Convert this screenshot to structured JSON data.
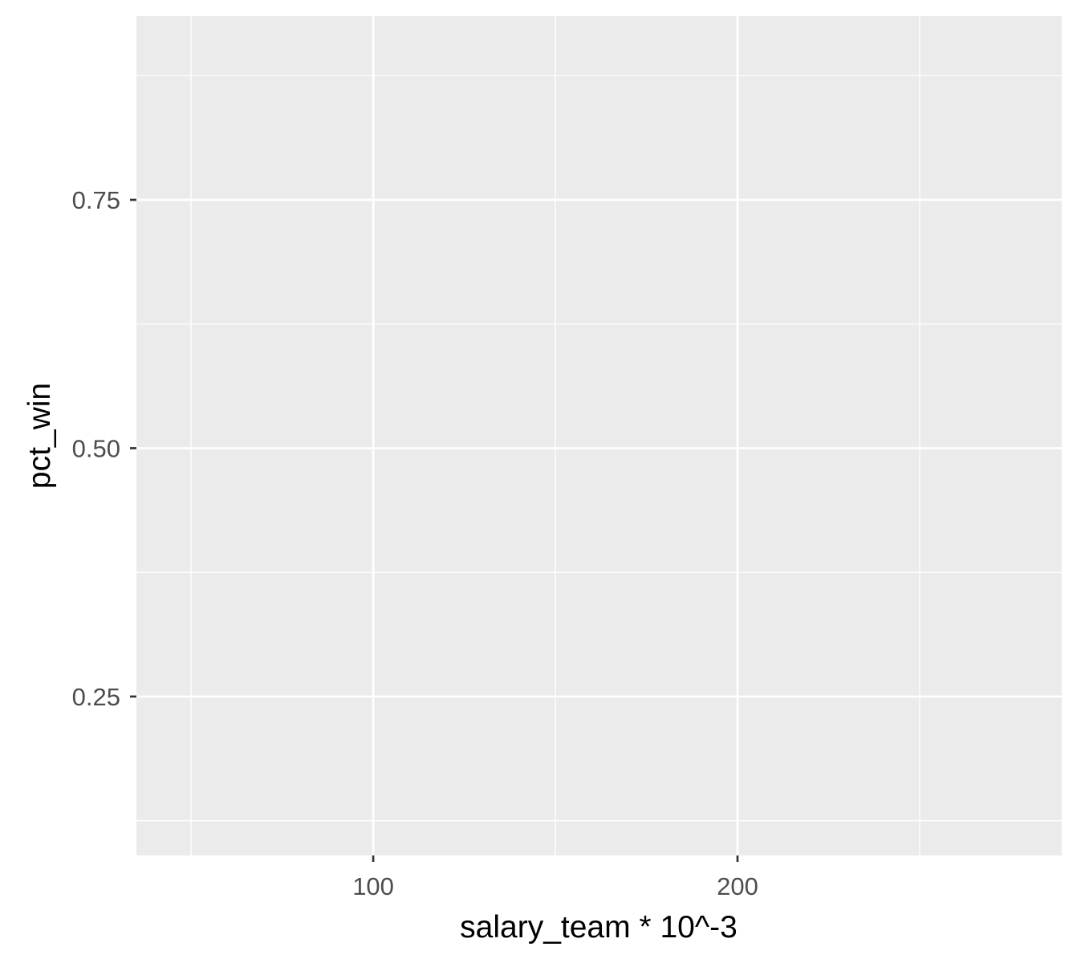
{
  "chart_data": {
    "type": "scatter",
    "title": "",
    "xlabel": "salary_team * 10^-3",
    "ylabel": "pct_win",
    "xlim": [
      35,
      289
    ],
    "ylim": [
      0.09,
      0.935
    ],
    "x_ticks": [
      {
        "value": 100,
        "label": "100"
      },
      {
        "value": 200,
        "label": "200"
      }
    ],
    "x_minor_ticks": [
      50,
      150,
      250
    ],
    "y_ticks": [
      {
        "value": 0.25,
        "label": "0.25"
      },
      {
        "value": 0.5,
        "label": "0.50"
      },
      {
        "value": 0.75,
        "label": "0.75"
      }
    ],
    "y_minor_ticks": [
      0.125,
      0.375,
      0.625,
      0.875
    ],
    "series": [
      {
        "values": []
      }
    ],
    "grid": true,
    "legend": "none",
    "colors": {
      "panel_background": "#ebebeb",
      "grid_line": "#ffffff",
      "tick_mark": "#333333",
      "tick_text": "#4d4d4d",
      "axis_title": "#000000"
    }
  }
}
